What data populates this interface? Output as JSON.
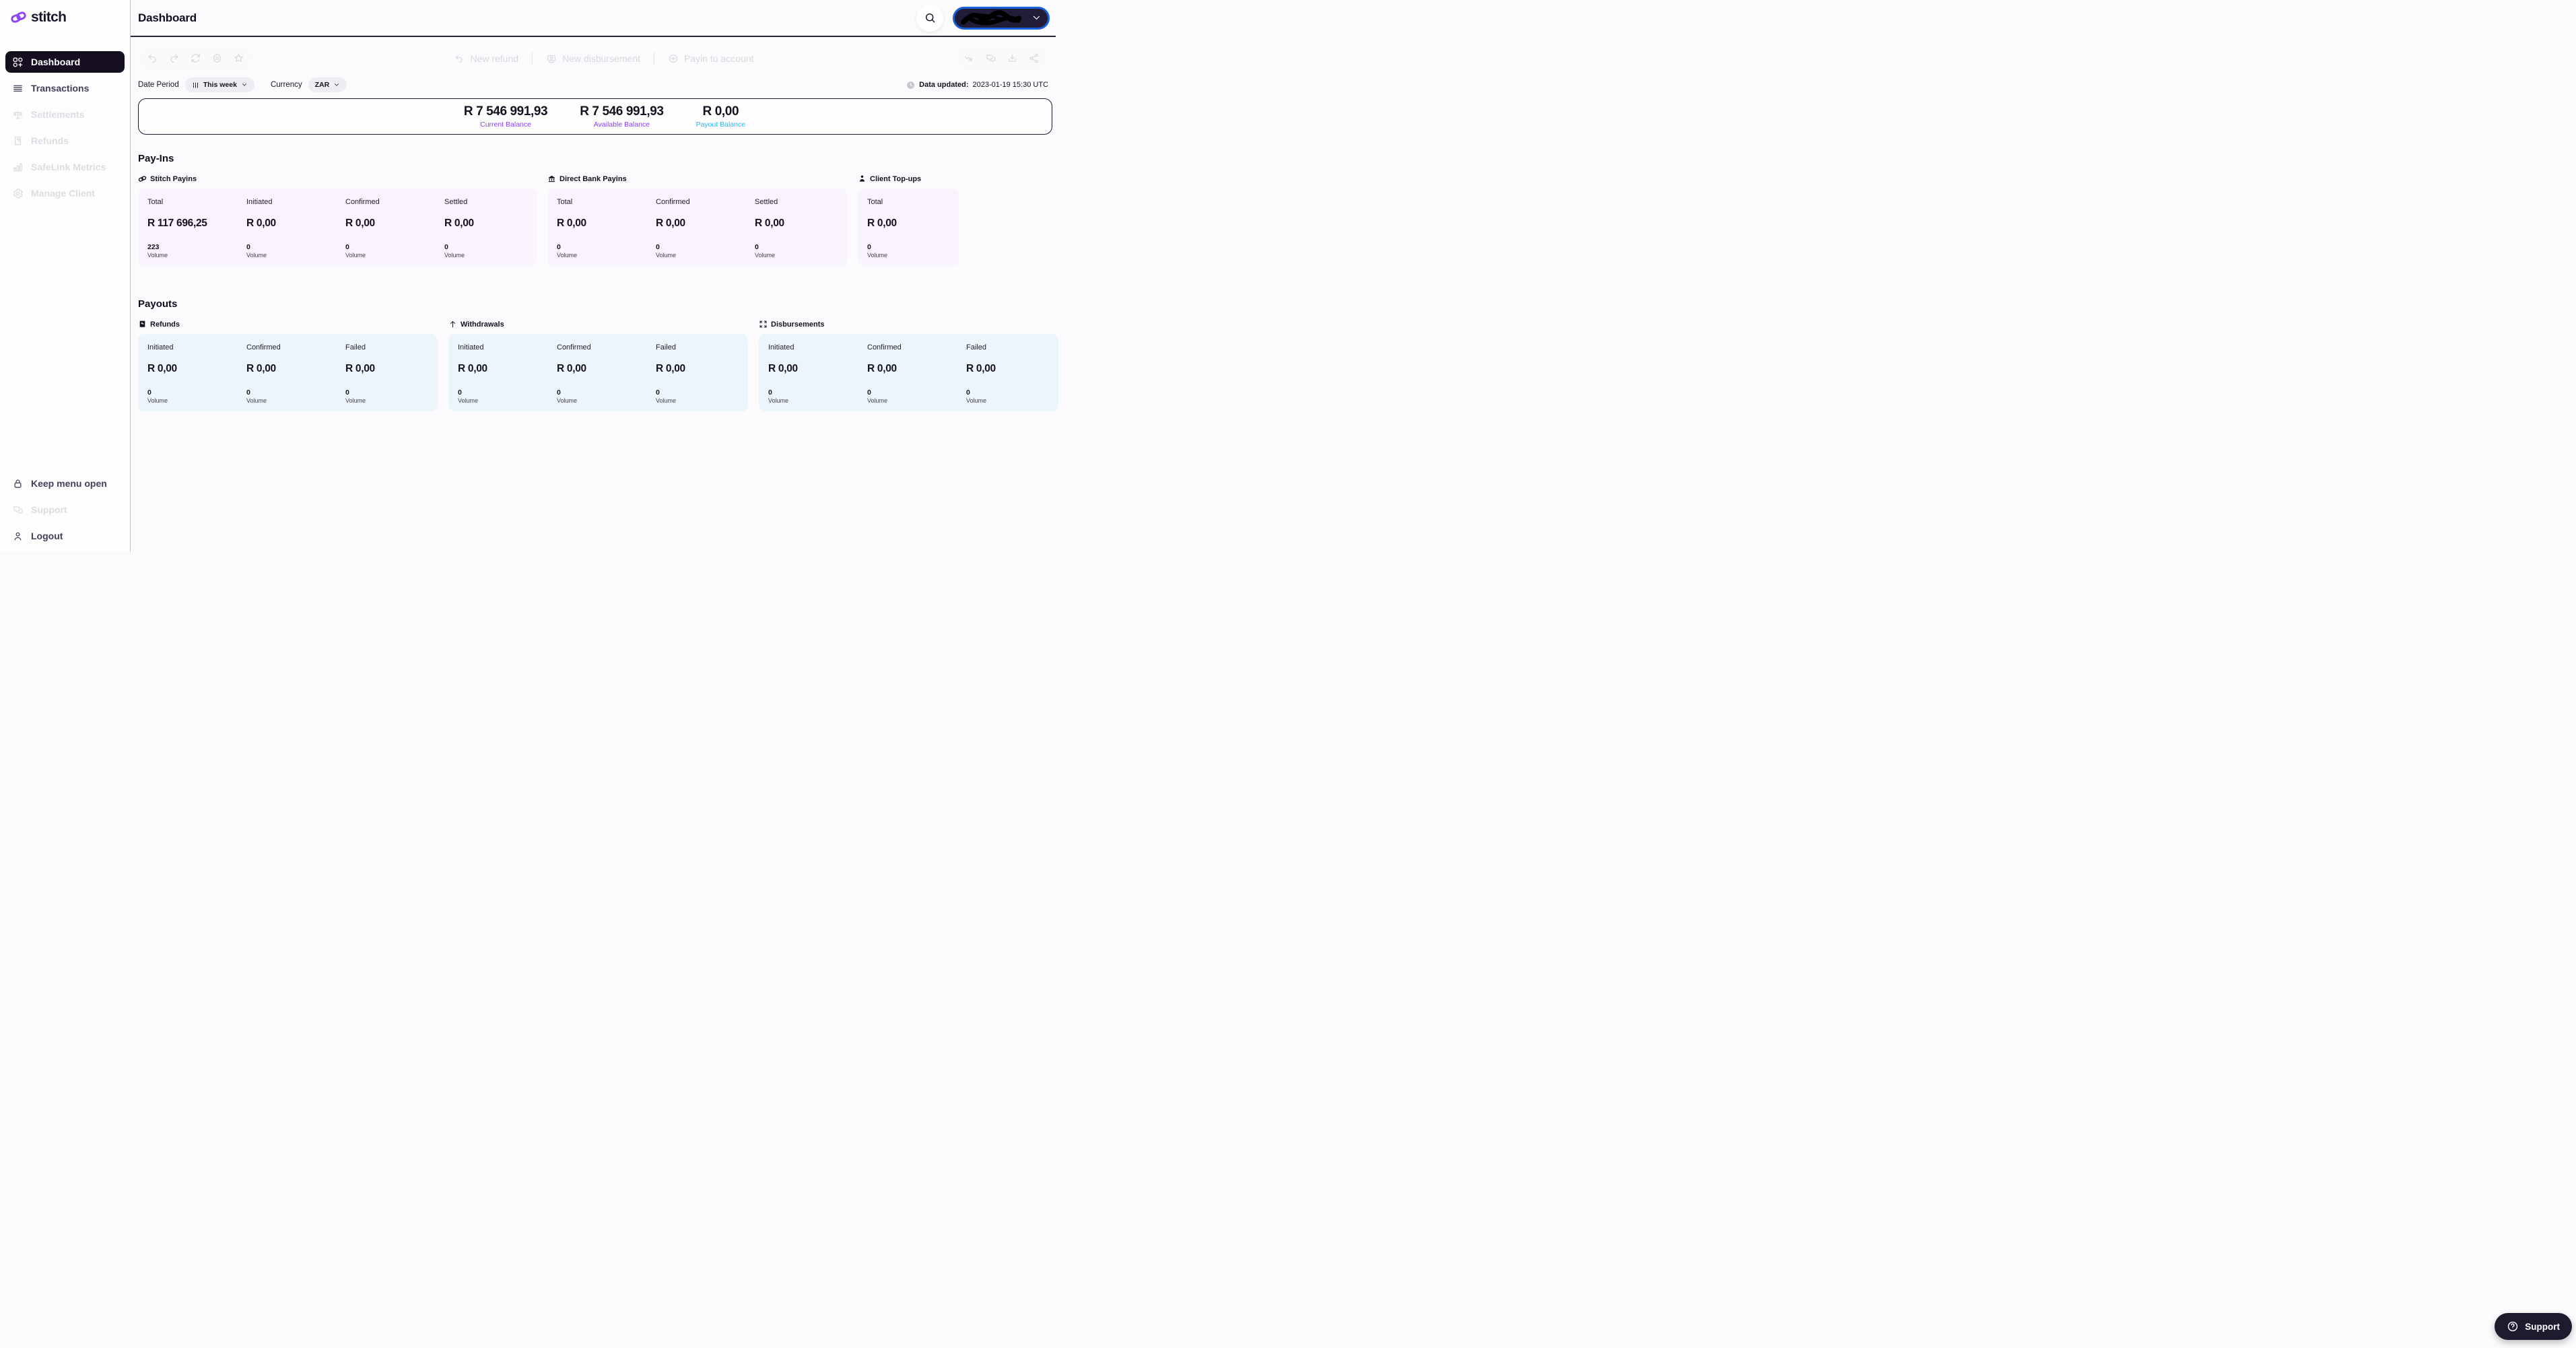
{
  "brand": {
    "name": "stitch"
  },
  "colors": {
    "accent_purple": "#8a42e3",
    "accent_cyan": "#33b6e8",
    "account_pill_border": "#1660d8",
    "payins_card": "#f8f3fc",
    "payouts_card": "#ecf6fa",
    "active_item_bg": "#150f20"
  },
  "header": {
    "title": "Dashboard"
  },
  "sidebar": {
    "items": [
      {
        "label": "Dashboard",
        "icon": "dashboard-grid-icon",
        "state": "active"
      },
      {
        "label": "Transactions",
        "icon": "transactions-list-icon",
        "state": "enabled"
      },
      {
        "label": "Settlements",
        "icon": "settlements-scales-icon",
        "state": "disabled"
      },
      {
        "label": "Refunds",
        "icon": "refunds-receipt-icon",
        "state": "disabled"
      },
      {
        "label": "SafeLink Metrics",
        "icon": "safelink-metrics-chart-icon",
        "state": "disabled"
      },
      {
        "label": "Manage Client",
        "icon": "manage-client-gear-icon",
        "state": "disabled"
      }
    ],
    "footer_items": [
      {
        "label": "Keep menu open",
        "icon": "lock-icon",
        "state": "enabled"
      },
      {
        "label": "Support",
        "icon": "support-chat-icon",
        "state": "disabled"
      },
      {
        "label": "Logout",
        "icon": "logout-person-icon",
        "state": "enabled"
      }
    ]
  },
  "toolbar": {
    "history_tools": [
      {
        "name": "undo",
        "icon": "undo-icon"
      },
      {
        "name": "redo",
        "icon": "redo-icon"
      },
      {
        "name": "refresh",
        "icon": "refresh-icon"
      },
      {
        "name": "pause",
        "icon": "pause-icon"
      },
      {
        "name": "favorite",
        "icon": "star-icon"
      }
    ],
    "actions": [
      {
        "label": "New refund",
        "icon": "refund-undo-icon"
      },
      {
        "label": "New disbursement",
        "icon": "disbursement-money-icon"
      },
      {
        "label": "Payin to account",
        "icon": "payin-plus-icon"
      }
    ],
    "share_tools": [
      {
        "name": "trend",
        "icon": "trend-down-icon"
      },
      {
        "name": "comments",
        "icon": "comments-icon"
      },
      {
        "name": "download",
        "icon": "download-icon"
      },
      {
        "name": "share",
        "icon": "share-icon"
      }
    ]
  },
  "filters": {
    "date_period_label": "Date Period",
    "date_period_value": "This week",
    "currency_label": "Currency",
    "currency_value": "ZAR",
    "data_updated_label": "Data updated:",
    "data_updated_value": "2023-01-19 15:30 UTC"
  },
  "balances": [
    {
      "amount": "R 7 546 991,93",
      "label": "Current Balance",
      "color": "#8a42e3"
    },
    {
      "amount": "R 7 546 991,93",
      "label": "Available Balance",
      "color": "#8a42e3"
    },
    {
      "amount": "R 0,00",
      "label": "Payout Balance",
      "color": "#33b6e8"
    }
  ],
  "sections": [
    {
      "title": "Pay-Ins",
      "groups": [
        {
          "name": "Stitch Payins",
          "icon": "stitch-link-icon",
          "card_color": "#f8f3fc",
          "metrics": [
            {
              "label": "Total",
              "amount": "R 117 696,25",
              "volume": "223",
              "volume_label": "Volume"
            },
            {
              "label": "Initiated",
              "amount": "R 0,00",
              "volume": "0",
              "volume_label": "Volume"
            },
            {
              "label": "Confirmed",
              "amount": "R 0,00",
              "volume": "0",
              "volume_label": "Volume"
            },
            {
              "label": "Settled",
              "amount": "R 0,00",
              "volume": "0",
              "volume_label": "Volume"
            }
          ]
        },
        {
          "name": "Direct Bank Payins",
          "icon": "bank-icon",
          "card_color": "#f8f3fc",
          "metrics": [
            {
              "label": "Total",
              "amount": "R 0,00",
              "volume": "0",
              "volume_label": "Volume"
            },
            {
              "label": "Confirmed",
              "amount": "R 0,00",
              "volume": "0",
              "volume_label": "Volume"
            },
            {
              "label": "Settled",
              "amount": "R 0,00",
              "volume": "0",
              "volume_label": "Volume"
            }
          ]
        },
        {
          "name": "Client Top-ups",
          "icon": "client-person-icon",
          "card_color": "#f8f3fc",
          "metrics": [
            {
              "label": "Total",
              "amount": "R 0,00",
              "volume": "0",
              "volume_label": "Volume"
            }
          ]
        }
      ]
    },
    {
      "title": "Payouts",
      "groups": [
        {
          "name": "Refunds",
          "icon": "refund-badge-icon",
          "card_color": "#ecf6fa",
          "metrics": [
            {
              "label": "Initiated",
              "amount": "R 0,00",
              "volume": "0",
              "volume_label": "Volume"
            },
            {
              "label": "Confirmed",
              "amount": "R 0,00",
              "volume": "0",
              "volume_label": "Volume"
            },
            {
              "label": "Failed",
              "amount": "R 0,00",
              "volume": "0",
              "volume_label": "Volume"
            }
          ]
        },
        {
          "name": "Withdrawals",
          "icon": "withdrawal-arrow-up-icon",
          "card_color": "#ecf6fa",
          "metrics": [
            {
              "label": "Initiated",
              "amount": "R 0,00",
              "volume": "0",
              "volume_label": "Volume"
            },
            {
              "label": "Confirmed",
              "amount": "R 0,00",
              "volume": "0",
              "volume_label": "Volume"
            },
            {
              "label": "Failed",
              "amount": "R 0,00",
              "volume": "0",
              "volume_label": "Volume"
            }
          ]
        },
        {
          "name": "Disbursements",
          "icon": "disbursements-expand-icon",
          "card_color": "#ecf6fa",
          "metrics": [
            {
              "label": "Initiated",
              "amount": "R 0,00",
              "volume": "0",
              "volume_label": "Volume"
            },
            {
              "label": "Confirmed",
              "amount": "R 0,00",
              "volume": "0",
              "volume_label": "Volume"
            },
            {
              "label": "Failed",
              "amount": "R 0,00",
              "volume": "0",
              "volume_label": "Volume"
            }
          ]
        }
      ]
    }
  ],
  "support": {
    "label": "Support"
  }
}
